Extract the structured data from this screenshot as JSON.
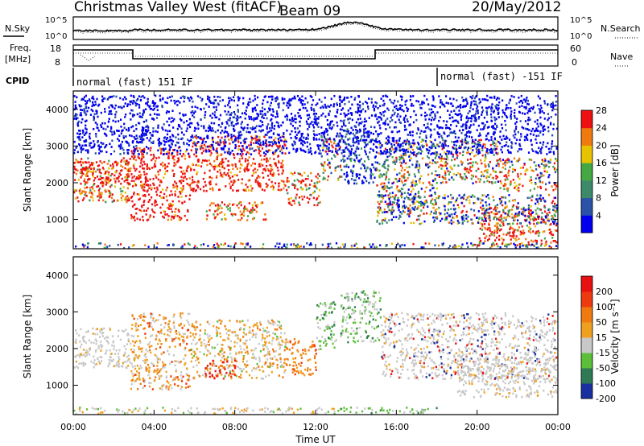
{
  "header": {
    "title": "Christmas Valley West (fitACF)",
    "beam": "Beam 09",
    "date": "20/May/2012"
  },
  "nsky_panel": {
    "left_label": "N.Sky",
    "right_label": "N.Search",
    "left_ticks": [
      "10^5",
      "10^0"
    ],
    "right_ticks": [
      "10^5",
      "10^0"
    ]
  },
  "freq_panel": {
    "left_label": "Freq.",
    "left_unit": "[MHz]",
    "right_label": "Nave",
    "left_ticks": [
      "18",
      "8"
    ],
    "right_ticks": [
      "60",
      "0"
    ]
  },
  "cpid": {
    "label": "CPID",
    "mode1": "normal (fast) 151 IF",
    "mode2": "normal (fast) -151 IF"
  },
  "chart_data": [
    {
      "type": "heatmap",
      "title": "",
      "ylabel": "Slant Range [km]",
      "yticks": [
        "1000",
        "2000",
        "3000",
        "4000"
      ],
      "ylim": [
        200,
        4500
      ],
      "xticks": [
        "00:00",
        "04:00",
        "08:00",
        "12:00",
        "16:00",
        "20:00",
        "00:00"
      ],
      "colorbar": {
        "label": "Power [dB]",
        "ticks": [
          "4",
          "8",
          "12",
          "16",
          "20",
          "24",
          "28"
        ],
        "colors": [
          "#0000ee",
          "#2a52a8",
          "#3c8a6a",
          "#44a845",
          "#e6c200",
          "#f07a10",
          "#ee1111"
        ]
      }
    },
    {
      "type": "heatmap",
      "title": "",
      "ylabel": "Slant Range [km]",
      "yticks": [
        "1000",
        "2000",
        "3000",
        "4000"
      ],
      "ylim": [
        200,
        4500
      ],
      "xticks": [
        "00:00",
        "04:00",
        "08:00",
        "12:00",
        "16:00",
        "20:00",
        "00:00"
      ],
      "xlabel": "Time UT",
      "colorbar": {
        "label": "Velocity [m s⁻¹]",
        "ticks": [
          "200",
          "100",
          "50",
          "15",
          "-15",
          "-50",
          "-100",
          "-200"
        ],
        "colors": [
          "#1a2fa0",
          "#2d7a55",
          "#5cbf3a",
          "#c8c8c8",
          "#f0a020",
          "#f07a10",
          "#ee3a10",
          "#e81010"
        ]
      }
    }
  ]
}
